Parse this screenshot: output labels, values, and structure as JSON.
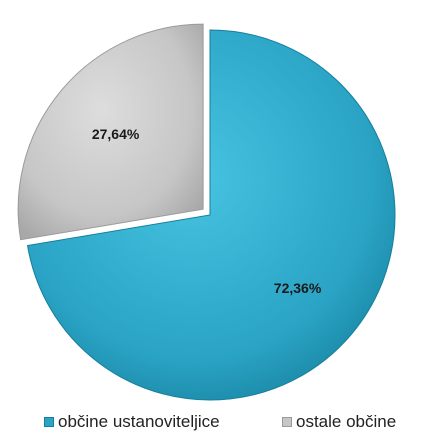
{
  "chart_data": {
    "type": "pie",
    "title": "",
    "slices": [
      {
        "label": "občine ustanoviteljice",
        "value": 72.36,
        "display": "72,36%",
        "color": "#2aa3c4",
        "exploded": false
      },
      {
        "label": "ostale občine",
        "value": 27.64,
        "display": "27,64%",
        "color": "#c6c6c6",
        "exploded": true
      }
    ],
    "legend_position": "bottom"
  }
}
